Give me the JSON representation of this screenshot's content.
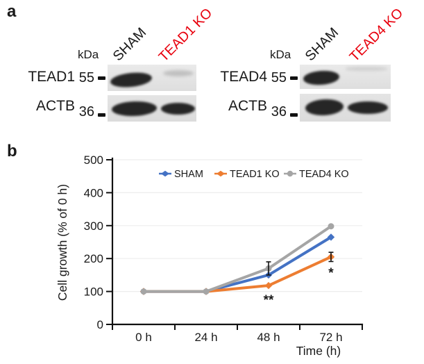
{
  "colors": {
    "text": "#1a1a1a",
    "red_label": "#e8000d",
    "axis": "#111111",
    "grid": "#ededed",
    "sham_series": "#4472c4",
    "tead1ko_series": "#ed7d31",
    "tead4ko_series": "#a5a5a5"
  },
  "panel_a": {
    "label": "a",
    "blots": [
      {
        "name": "TEAD1 knockout western blot",
        "kda_label": "kDa",
        "lanes": [
          {
            "label": "SHAM",
            "color": "#1a1a1a"
          },
          {
            "label": "TEAD1 KO",
            "color": "#e8000d"
          }
        ],
        "rows": [
          {
            "protein": "TEAD1",
            "marker_kda": "55",
            "band_intensities": [
              "strong",
              "faint"
            ]
          },
          {
            "protein": "ACTB",
            "marker_kda": "36",
            "band_intensities": [
              "strong",
              "strong"
            ]
          }
        ]
      },
      {
        "name": "TEAD4 knockout western blot",
        "kda_label": "kDa",
        "lanes": [
          {
            "label": "SHAM",
            "color": "#1a1a1a"
          },
          {
            "label": "TEAD4 KO",
            "color": "#e8000d"
          }
        ],
        "rows": [
          {
            "protein": "TEAD4",
            "marker_kda": "55",
            "band_intensities": [
              "strong",
              "none"
            ]
          },
          {
            "protein": "ACTB",
            "marker_kda": "36",
            "band_intensities": [
              "strong",
              "strong"
            ]
          }
        ]
      }
    ]
  },
  "panel_b": {
    "label": "b"
  },
  "chart_data": {
    "type": "line",
    "x": [
      "0 h",
      "24 h",
      "48 h",
      "72 h"
    ],
    "series": [
      {
        "name": "SHAM",
        "color": "#4472c4",
        "marker": "diamond",
        "values": [
          100,
          100,
          150,
          265
        ]
      },
      {
        "name": "TEAD1 KO",
        "color": "#ed7d31",
        "marker": "diamond",
        "values": [
          100,
          100,
          118,
          205
        ]
      },
      {
        "name": "TEAD4 KO",
        "color": "#a5a5a5",
        "marker": "circle",
        "values": [
          100,
          100,
          170,
          298
        ]
      }
    ],
    "error_bars": [
      {
        "series": "TEAD4 KO",
        "x": "48 h",
        "value": 170,
        "plus_minus": 20
      },
      {
        "series": "TEAD1 KO",
        "x": "72 h",
        "value": 205,
        "plus_minus": 14
      }
    ],
    "annotations": [
      {
        "text": "**",
        "x": "48 h",
        "value": 82
      },
      {
        "text": "*",
        "x": "72 h",
        "value": 165
      }
    ],
    "title": "",
    "xlabel": "Time (h)",
    "ylabel": "Cell growth (% of 0 h)",
    "ylim": [
      0,
      500
    ],
    "ytick_step": 100,
    "grid": true,
    "legend_position": "top"
  }
}
